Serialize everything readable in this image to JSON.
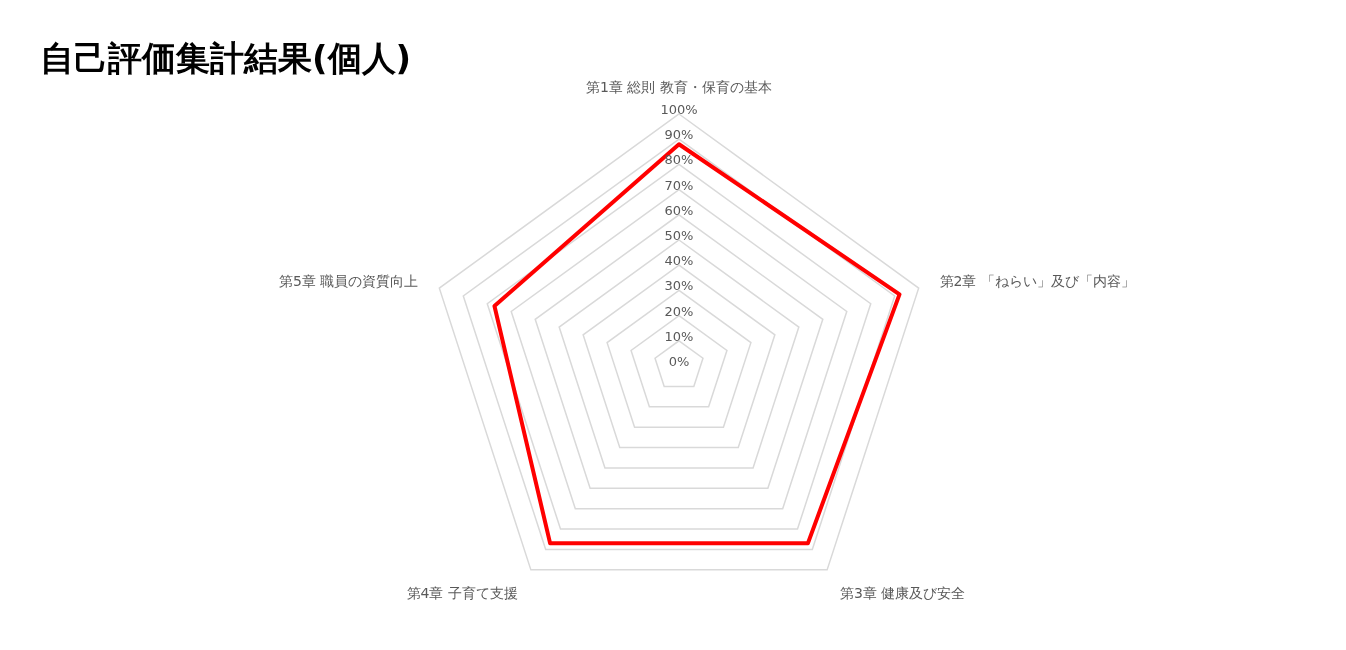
{
  "chart_data": {
    "type": "radar",
    "title": "自己評価集計結果(個人)",
    "categories": [
      "第1章  総則  教育・保育の基本",
      "第2章 「ねらい」及び「内容」",
      "第3章  健康及び安全",
      "第4章  子育て支援",
      "第5章  職員の資質向上"
    ],
    "series": [
      {
        "color": "#ff0000",
        "values": [
          88,
          92,
          87,
          87,
          77
        ]
      }
    ],
    "ylim": [
      0,
      100
    ],
    "yticks": [
      {
        "value": 0,
        "label": "0%"
      },
      {
        "value": 10,
        "label": "10%"
      },
      {
        "value": 20,
        "label": "20%"
      },
      {
        "value": 30,
        "label": "30%"
      },
      {
        "value": 40,
        "label": "40%"
      },
      {
        "value": 50,
        "label": "50%"
      },
      {
        "value": 60,
        "label": "60%"
      },
      {
        "value": 70,
        "label": "70%"
      },
      {
        "value": 80,
        "label": "80%"
      },
      {
        "value": 90,
        "label": "90%"
      },
      {
        "value": 100,
        "label": "100%"
      }
    ],
    "grid": true,
    "legend": false
  }
}
